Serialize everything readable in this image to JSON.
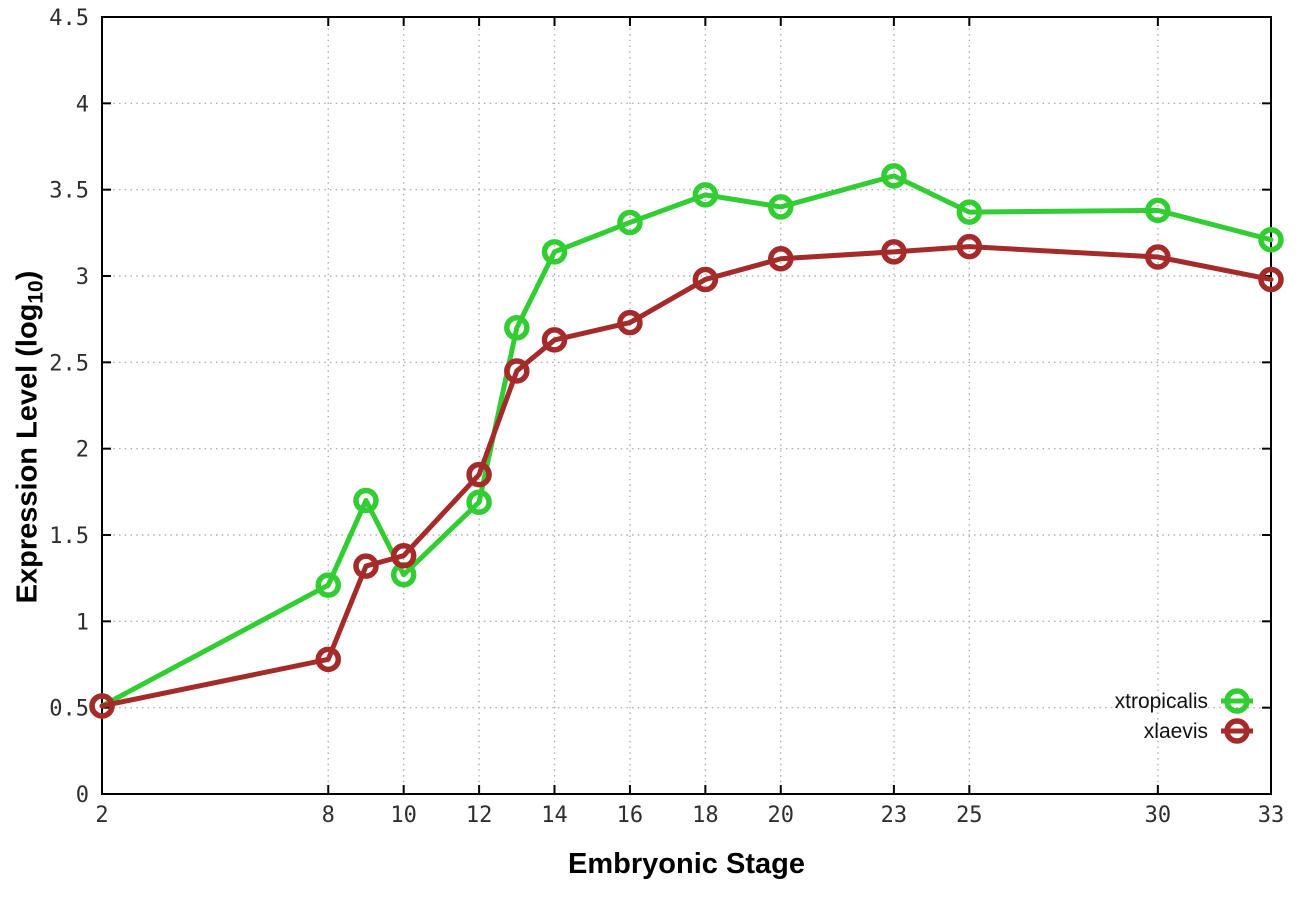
{
  "chart_data": {
    "type": "line",
    "title": "",
    "xlabel": "Embryonic Stage",
    "ylabel": "Expression Level (log10)",
    "ylabel_parts": {
      "main": "Expression Level (log",
      "sub": "10",
      "end": ")"
    },
    "xlim": [
      2,
      33
    ],
    "ylim": [
      0,
      4.5
    ],
    "x_ticks": [
      2,
      8,
      10,
      12,
      14,
      16,
      18,
      20,
      23,
      25,
      30,
      33
    ],
    "y_ticks": [
      0,
      0.5,
      1,
      1.5,
      2,
      2.5,
      3,
      3.5,
      4,
      4.5
    ],
    "grid": true,
    "grid_style": "dotted",
    "ticks_mirrored": true,
    "legend_position": "inside bottom-right",
    "axis_color": "#000000",
    "grid_color": "#b0b0b0",
    "tick_label_color": "#2e2e2e",
    "legend_text_color": "#111111",
    "marker": "open-circle",
    "series": [
      {
        "name": "xtropicalis",
        "color": "#32cd32",
        "x": [
          2,
          8,
          9,
          10,
          12,
          13,
          14,
          16,
          18,
          20,
          23,
          25,
          30,
          33
        ],
        "y": [
          0.51,
          1.21,
          1.7,
          1.27,
          1.69,
          2.7,
          3.14,
          3.31,
          3.47,
          3.4,
          3.58,
          3.37,
          3.38,
          3.21
        ]
      },
      {
        "name": "xlaevis",
        "color": "#a52a2a",
        "x": [
          2,
          8,
          9,
          10,
          12,
          13,
          14,
          16,
          18,
          20,
          23,
          25,
          30,
          33
        ],
        "y": [
          0.51,
          0.78,
          1.32,
          1.38,
          1.85,
          2.45,
          2.63,
          2.73,
          2.98,
          3.1,
          3.14,
          3.17,
          3.11,
          2.98
        ]
      }
    ]
  }
}
